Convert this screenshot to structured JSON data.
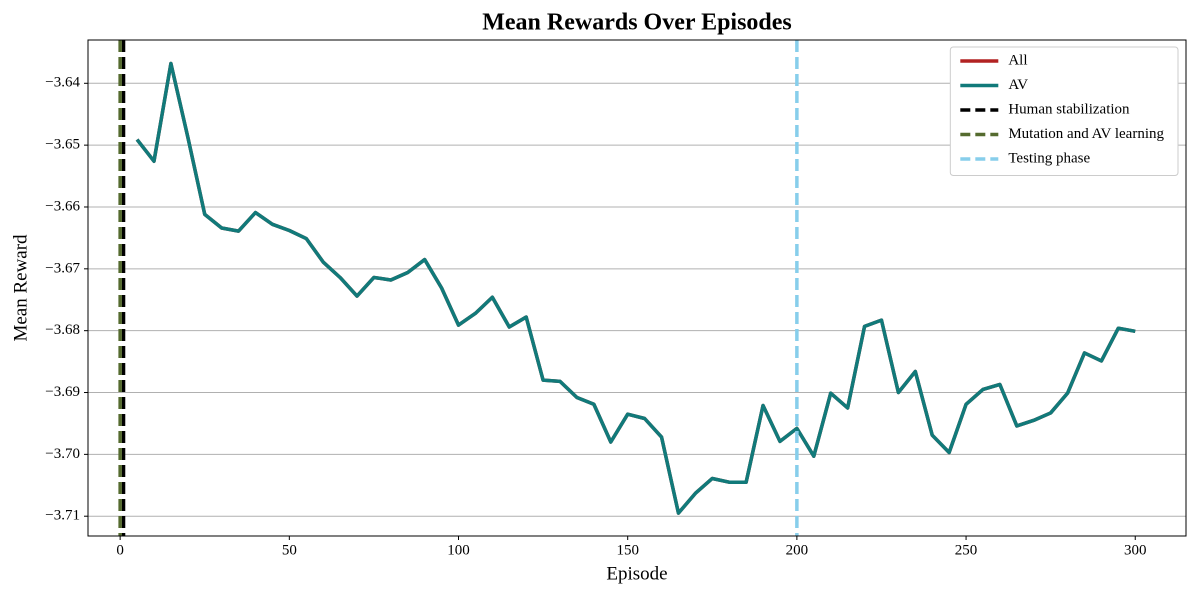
{
  "chart_data": {
    "type": "line",
    "title": "Mean Rewards Over Episodes",
    "x_label": "Episode",
    "y_label": "Mean Reward",
    "x": [
      5,
      10,
      15,
      20,
      25,
      30,
      35,
      40,
      45,
      50,
      55,
      60,
      65,
      70,
      75,
      80,
      85,
      90,
      95,
      100,
      105,
      110,
      115,
      120,
      125,
      130,
      135,
      140,
      145,
      150,
      155,
      160,
      165,
      170,
      175,
      180,
      185,
      190,
      195,
      200,
      205,
      210,
      215,
      220,
      225,
      230,
      235,
      240,
      245,
      250,
      255,
      260,
      265,
      270,
      275,
      280,
      285,
      290,
      295,
      300
    ],
    "series": [
      {
        "name": "All",
        "color": "#b22222",
        "values": [
          -3.6491,
          -3.6526,
          -3.6368,
          -3.6487,
          -3.6612,
          -3.6634,
          -3.6639,
          -3.6609,
          -3.6628,
          -3.6638,
          -3.6651,
          -3.6689,
          -3.6714,
          -3.6744,
          -3.6714,
          -3.6718,
          -3.6706,
          -3.6685,
          -3.6731,
          -3.6791,
          -3.6772,
          -3.6746,
          -3.6794,
          -3.6778,
          -3.688,
          -3.6882,
          -3.6908,
          -3.6919,
          -3.698,
          -3.6935,
          -3.6942,
          -3.6972,
          -3.7095,
          -3.7063,
          -3.7039,
          -3.7045,
          -3.7045,
          -3.6921,
          -3.6979,
          -3.6958,
          -3.7003,
          -3.6901,
          -3.6925,
          -3.6793,
          -3.6783,
          -3.69,
          -3.6866,
          -3.6969,
          -3.6997,
          -3.6919,
          -3.6895,
          -3.6887,
          -3.6954,
          -3.6945,
          -3.6933,
          -3.6901,
          -3.6836,
          -3.6849,
          -3.6796,
          -3.6801
        ]
      },
      {
        "name": "AV",
        "color": "#117a7a",
        "values": [
          -3.6491,
          -3.6526,
          -3.6368,
          -3.6487,
          -3.6612,
          -3.6634,
          -3.6639,
          -3.6609,
          -3.6628,
          -3.6638,
          -3.6651,
          -3.6689,
          -3.6714,
          -3.6744,
          -3.6714,
          -3.6718,
          -3.6706,
          -3.6685,
          -3.6731,
          -3.6791,
          -3.6772,
          -3.6746,
          -3.6794,
          -3.6778,
          -3.688,
          -3.6882,
          -3.6908,
          -3.6919,
          -3.698,
          -3.6935,
          -3.6942,
          -3.6972,
          -3.7095,
          -3.7063,
          -3.7039,
          -3.7045,
          -3.7045,
          -3.6921,
          -3.6979,
          -3.6958,
          -3.7003,
          -3.6901,
          -3.6925,
          -3.6793,
          -3.6783,
          -3.69,
          -3.6866,
          -3.6969,
          -3.6997,
          -3.6919,
          -3.6895,
          -3.6887,
          -3.6954,
          -3.6945,
          -3.6933,
          -3.6901,
          -3.6836,
          -3.6849,
          -3.6796,
          -3.6801
        ]
      }
    ],
    "vlines": [
      {
        "name": "Human stabilization",
        "color": "#000000",
        "x": 1
      },
      {
        "name": "Mutation and AV learning",
        "color": "#556b2f",
        "x": 0
      },
      {
        "name": "Testing phase",
        "color": "#87ceeb",
        "x": 200
      }
    ],
    "xlim": [
      -9.5,
      315
    ],
    "ylim": [
      -3.7132,
      -3.633
    ],
    "xticks": [
      0,
      50,
      100,
      150,
      200,
      250,
      300
    ],
    "yticks": [
      {
        "value": -3.71,
        "label": "−3.71"
      },
      {
        "value": -3.7,
        "label": "−3.70"
      },
      {
        "value": -3.69,
        "label": "−3.69"
      },
      {
        "value": -3.68,
        "label": "−3.68"
      },
      {
        "value": -3.67,
        "label": "−3.67"
      },
      {
        "value": -3.66,
        "label": "−3.66"
      },
      {
        "value": -3.65,
        "label": "−3.65"
      },
      {
        "value": -3.64,
        "label": "−3.64"
      }
    ],
    "grid": "y",
    "legend": "upper right"
  }
}
